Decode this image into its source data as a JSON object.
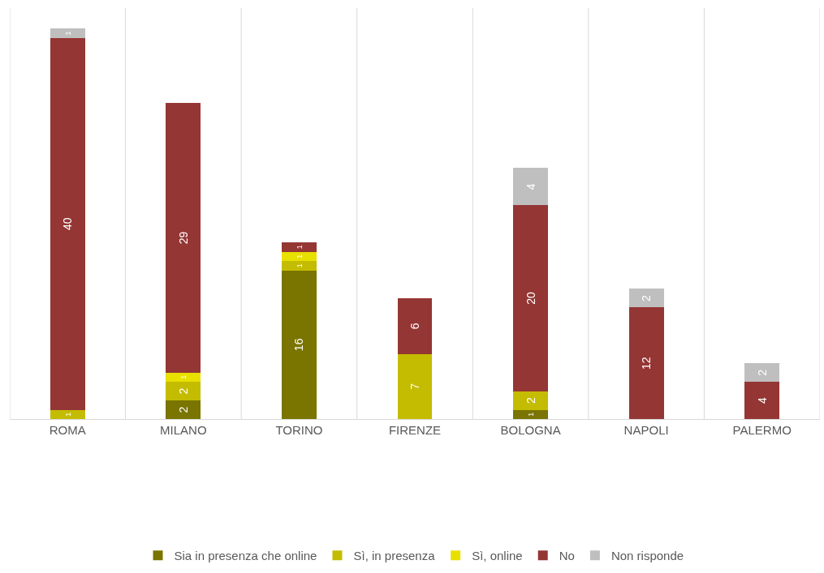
{
  "chart_data": {
    "type": "bar",
    "stacked": true,
    "data_labels": true,
    "grid": "x",
    "legend": "bottom",
    "categories": [
      "ROMA",
      "MILANO",
      "TORINO",
      "FIRENZE",
      "BOLOGNA",
      "NAPOLI",
      "PALERMO"
    ],
    "series": [
      {
        "name": "Sia in presenza che online",
        "color": "#7a7400",
        "values": [
          null,
          2,
          16,
          null,
          1,
          null,
          null
        ]
      },
      {
        "name": "Sì, in presenza",
        "color": "#c4bc00",
        "values": [
          1,
          2,
          1,
          7,
          2,
          null,
          null
        ]
      },
      {
        "name": "Sì, online",
        "color": "#e8e000",
        "values": [
          null,
          1,
          1,
          null,
          null,
          null,
          null
        ]
      },
      {
        "name": "No",
        "color": "#943634",
        "values": [
          40,
          29,
          1,
          6,
          20,
          12,
          4
        ]
      },
      {
        "name": "Non risponde",
        "color": "#bfbfbf",
        "values": [
          1,
          null,
          null,
          null,
          4,
          2,
          2
        ]
      }
    ]
  }
}
